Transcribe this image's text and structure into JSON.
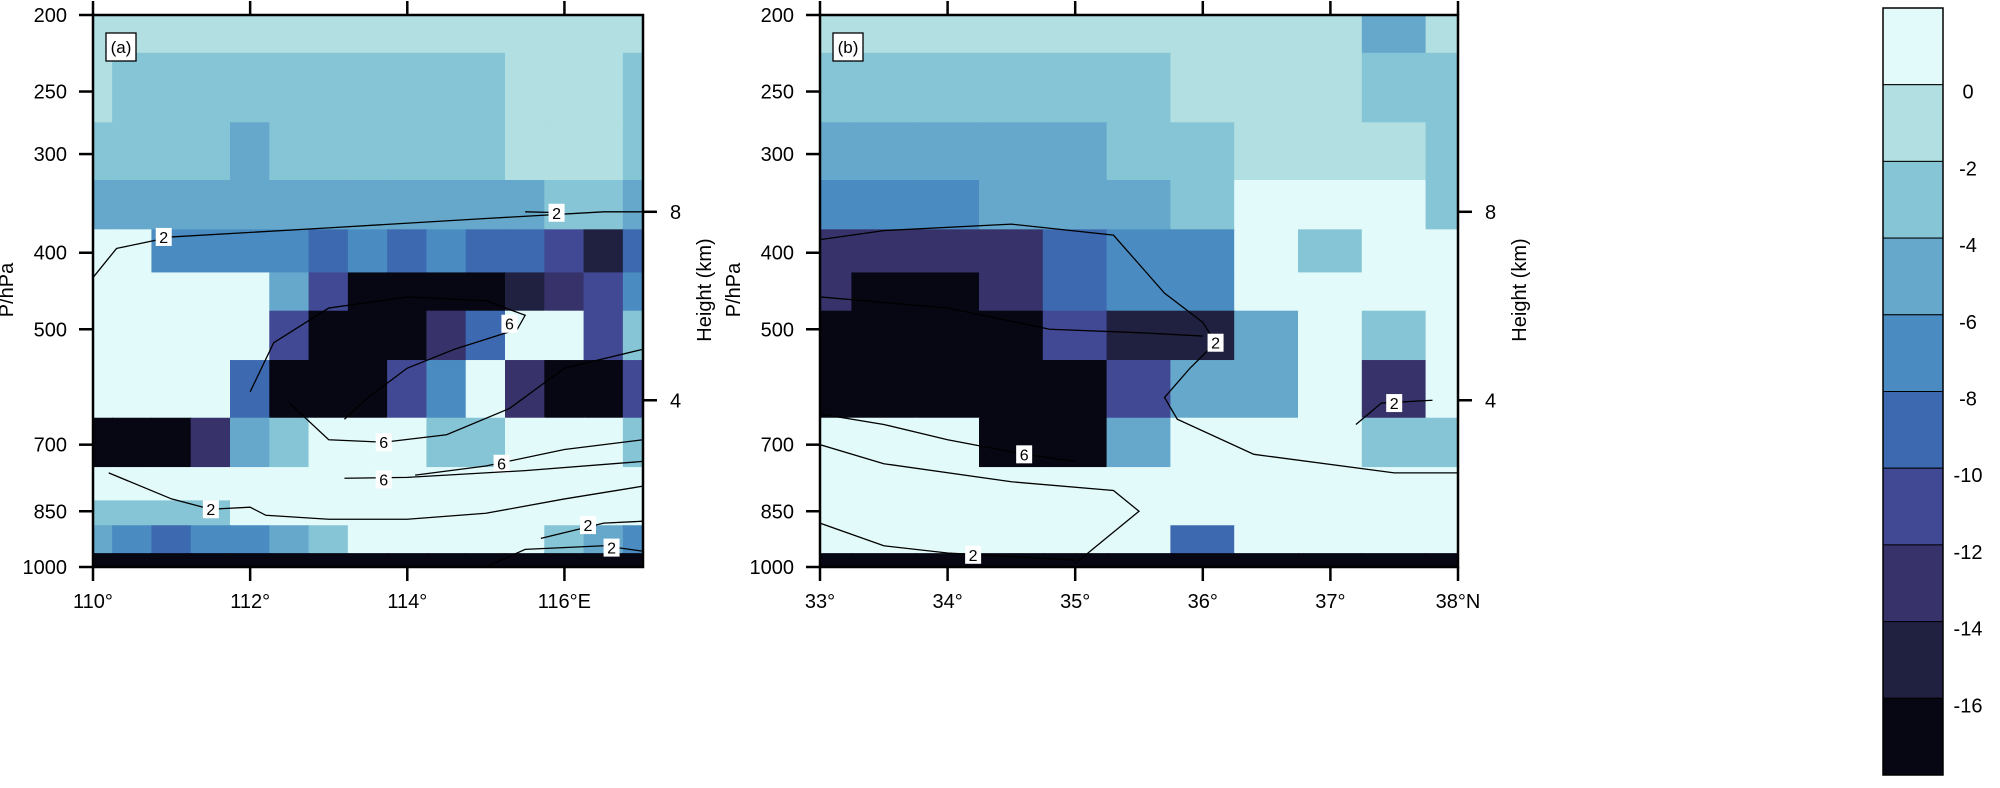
{
  "chart_data": {
    "type": "heatmap",
    "colorbar": {
      "levels": [
        0,
        -2,
        -4,
        -6,
        -8,
        -10,
        -12,
        -14,
        -16
      ],
      "tick_labels": [
        "0",
        "-2",
        "-4",
        "-6",
        "-8",
        "-10",
        "-12",
        "-14",
        "-16"
      ],
      "colors": [
        "#e3fafa",
        "#b1dfe2",
        "#86c5d5",
        "#65a8cb",
        "#4a8cc2",
        "#3d69b0",
        "#424994",
        "#37336a",
        "#202040",
        "#070714"
      ]
    },
    "panels": [
      {
        "label": "(a)",
        "ylabel": "P/hPa",
        "ylabel_right": "Height (km)",
        "y_scale": "log",
        "ylim": [
          1000,
          200
        ],
        "xlim": [
          110,
          117
        ],
        "x_ticks": [
          110,
          112,
          114,
          116
        ],
        "x_tick_labels": [
          "110°",
          "112°",
          "114°",
          "116°E"
        ],
        "y_ticks": [
          200,
          250,
          300,
          400,
          500,
          700,
          850,
          1000
        ],
        "y_tick_labels": [
          "200",
          "250",
          "300",
          "400",
          "500",
          "700",
          "850",
          "1000"
        ],
        "height_ticks": [
          {
            "p": 355,
            "label": "8"
          },
          {
            "p": 615,
            "label": "4"
          }
        ],
        "x": [
          110,
          110.5,
          111,
          111.5,
          112,
          112.5,
          113,
          113.5,
          114,
          114.5,
          115,
          115.5,
          116,
          116.5,
          117
        ],
        "p": [
          200,
          250,
          300,
          350,
          400,
          450,
          500,
          600,
          700,
          800,
          850,
          925,
          1000
        ],
        "values": [
          [
            -1,
            -1,
            -1,
            -1,
            -1,
            -1,
            -1,
            -1,
            -1,
            -1,
            -1,
            -1,
            -1,
            -1,
            -1
          ],
          [
            -1,
            -3,
            -3,
            -3,
            -3,
            -3,
            -3,
            -3,
            -3,
            -3,
            -3,
            -1,
            -1,
            -1,
            -3
          ],
          [
            -3,
            -3,
            -3,
            -3,
            -4,
            -3,
            -3,
            -3,
            -3,
            -3,
            -3,
            -1,
            -1,
            -1,
            -3
          ],
          [
            -4,
            -5,
            -5,
            -5,
            -4,
            -4,
            -4,
            -4,
            -4,
            -4,
            -4,
            -4,
            -3,
            -3,
            -5
          ],
          [
            1,
            1,
            -6,
            -7,
            -6,
            -7,
            -8,
            -7,
            -8,
            -7,
            -8,
            -9,
            -10,
            -14,
            -8
          ],
          [
            1,
            1,
            1,
            1,
            1,
            -5,
            -10,
            -16,
            -17,
            -17,
            -16,
            -15,
            -12,
            -10,
            -6
          ],
          [
            1,
            1,
            1,
            1,
            1,
            -10,
            -17,
            -17,
            -17,
            -12,
            -8,
            1,
            1,
            -10,
            -3
          ],
          [
            1,
            1,
            1,
            1,
            -8,
            -17,
            -17,
            -17,
            -10,
            -6,
            1,
            -12,
            -17,
            -17,
            -10
          ],
          [
            -17,
            -17,
            -17,
            -12,
            -4,
            -2,
            1,
            1,
            1,
            -2,
            -2,
            1,
            1,
            1,
            -2
          ],
          [
            1,
            1,
            1,
            1,
            1,
            1,
            1,
            1,
            1,
            1,
            1,
            1,
            1,
            1,
            1
          ],
          [
            -3,
            -2,
            -3,
            -3,
            1,
            1,
            1,
            1,
            1,
            1,
            1,
            1,
            1,
            1,
            1
          ],
          [
            -4,
            -6,
            -8,
            -6,
            -6,
            -4,
            -2,
            1,
            1,
            1,
            1,
            1,
            -3,
            -5,
            -6
          ],
          [
            -17,
            -17,
            -17,
            -17,
            -17,
            -17,
            -17,
            -17,
            -17,
            -17,
            -17,
            -17,
            -17,
            -17,
            -17
          ]
        ],
        "contours": [
          {
            "label": "2",
            "points": [
              [
                110,
                430
              ],
              [
                110.3,
                395
              ],
              [
                111,
                382
              ],
              [
                113,
                372
              ],
              [
                115,
                362
              ],
              [
                116.5,
                355
              ],
              [
                117,
                355
              ]
            ],
            "label_at": [
              110.9,
              382
            ]
          },
          {
            "label": "2",
            "points": [
              [
                115.5,
                355
              ],
              [
                116,
                356
              ]
            ],
            "label_at": [
              115.9,
              356
            ]
          },
          {
            "label": "6",
            "points": [
              [
                112,
                600
              ],
              [
                112.3,
                520
              ],
              [
                113,
                470
              ],
              [
                114,
                455
              ],
              [
                115,
                460
              ],
              [
                115.5,
                480
              ],
              [
                115.4,
                500
              ],
              [
                114.6,
                530
              ],
              [
                114,
                560
              ],
              [
                113.5,
                610
              ],
              [
                113.2,
                650
              ]
            ],
            "label_at": [
              115.3,
              492
            ]
          },
          {
            "label": "6",
            "points": [
              [
                112.5,
                620
              ],
              [
                113,
                690
              ],
              [
                113.7,
                695
              ],
              [
                114.5,
                680
              ],
              [
                115.3,
                630
              ],
              [
                116,
                560
              ],
              [
                117,
                530
              ]
            ],
            "label_at": [
              113.7,
              695
            ]
          },
          {
            "label": "6",
            "points": [
              [
                114.1,
                765
              ],
              [
                115,
                745
              ],
              [
                116,
                710
              ],
              [
                117,
                690
              ]
            ],
            "label_at": [
              115.2,
              740
            ]
          },
          {
            "label": "6",
            "points": [
              [
                113.2,
                772
              ],
              [
                114,
                770
              ],
              [
                115.5,
                755
              ],
              [
                117,
                735
              ]
            ],
            "label_at": [
              113.7,
              775
            ]
          },
          {
            "label": "2",
            "points": [
              [
                110.2,
                760
              ],
              [
                111,
                820
              ],
              [
                111.5,
                845
              ],
              [
                112,
                840
              ],
              [
                112.2,
                860
              ],
              [
                113,
                870
              ],
              [
                114,
                870
              ],
              [
                115,
                855
              ],
              [
                116,
                820
              ],
              [
                117,
                790
              ]
            ],
            "label_at": [
              111.5,
              845
            ]
          },
          {
            "label": "2",
            "points": [
              [
                115.7,
                920
              ],
              [
                116.5,
                880
              ],
              [
                117,
                875
              ]
            ],
            "label_at": [
              116.3,
              885
            ]
          },
          {
            "label": "2",
            "points": [
              [
                115,
                1000
              ],
              [
                115.5,
                950
              ],
              [
                116.5,
                940
              ],
              [
                117,
                955
              ]
            ],
            "label_at": [
              116.6,
              945
            ]
          }
        ]
      },
      {
        "label": "(b)",
        "ylabel": "P/hPa",
        "ylabel_right": "Height (km)",
        "y_scale": "log",
        "ylim": [
          1000,
          200
        ],
        "xlim": [
          33,
          38
        ],
        "x_ticks": [
          33,
          34,
          35,
          36,
          37,
          38
        ],
        "x_tick_labels": [
          "33°",
          "34°",
          "35°",
          "36°",
          "37°",
          "38°N"
        ],
        "y_ticks": [
          200,
          250,
          300,
          400,
          500,
          700,
          850,
          1000
        ],
        "y_tick_labels": [
          "200",
          "250",
          "300",
          "400",
          "500",
          "700",
          "850",
          "1000"
        ],
        "height_ticks": [
          {
            "p": 355,
            "label": "8"
          },
          {
            "p": 615,
            "label": "4"
          }
        ],
        "x": [
          33,
          33.5,
          34,
          34.5,
          35,
          35.5,
          36,
          36.5,
          37,
          37.5,
          38
        ],
        "p": [
          200,
          250,
          300,
          350,
          400,
          450,
          500,
          600,
          700,
          800,
          850,
          925,
          1000
        ],
        "values": [
          [
            -1,
            -1,
            -1,
            -1,
            -1,
            -1,
            -1,
            -1,
            -1,
            -5,
            -1
          ],
          [
            -3,
            -3,
            -3,
            -3,
            -3,
            -3,
            -1,
            -1,
            -1,
            -3,
            -3
          ],
          [
            -5,
            -5,
            -5,
            -5,
            -5,
            -3,
            -3,
            -1,
            -1,
            -1,
            -3
          ],
          [
            -7,
            -7,
            -7,
            -5,
            -5,
            -5,
            -3,
            1,
            1,
            1,
            -3
          ],
          [
            -12,
            -12,
            -12,
            -12,
            -9,
            -6,
            -6,
            1,
            -3,
            1,
            1
          ],
          [
            -12,
            -17,
            -17,
            -12,
            -8,
            -7,
            -7,
            1,
            1,
            1,
            1
          ],
          [
            -17,
            -17,
            -17,
            -17,
            -11,
            -14,
            -14,
            -4,
            1,
            -3,
            1
          ],
          [
            -17,
            -17,
            -17,
            -17,
            -17,
            -10,
            -5,
            -5,
            1,
            -13,
            1
          ],
          [
            1,
            1,
            1,
            -17,
            -17,
            -4,
            1,
            1,
            1,
            -3,
            -3
          ],
          [
            1,
            1,
            1,
            1,
            1,
            1,
            1,
            1,
            1,
            1,
            1
          ],
          [
            1,
            1,
            1,
            1,
            1,
            1,
            1,
            1,
            1,
            1,
            1
          ],
          [
            1,
            1,
            1,
            1,
            1,
            1,
            -8,
            1,
            1,
            1,
            1
          ],
          [
            -17,
            -17,
            -17,
            -17,
            -17,
            -17,
            -17,
            -17,
            -17,
            -17,
            -17
          ]
        ],
        "contours": [
          {
            "label": "2",
            "points": [
              [
                33,
                385
              ],
              [
                33.5,
                375
              ],
              [
                34.5,
                368
              ],
              [
                35.3,
                380
              ],
              [
                35.7,
                450
              ],
              [
                36,
                490
              ],
              [
                36.1,
                520
              ],
              [
                35.9,
                560
              ],
              [
                35.7,
                610
              ],
              [
                35.8,
                650
              ],
              [
                36.4,
                720
              ],
              [
                37.5,
                760
              ],
              [
                38,
                760
              ]
            ],
            "label_at": [
              36.1,
              520
            ]
          },
          {
            "label": "2",
            "points": [
              [
                37.2,
                660
              ],
              [
                37.4,
                620
              ],
              [
                37.8,
                615
              ]
            ],
            "label_at": [
              37.5,
              620
            ]
          },
          {
            "label": "6",
            "points": [
              [
                33,
                640
              ],
              [
                33.5,
                660
              ],
              [
                34,
                690
              ],
              [
                34.6,
                720
              ],
              [
                35,
                735
              ]
            ],
            "label_at": [
              34.6,
              720
            ]
          },
          {
            "label": "2",
            "points": [
              [
                33,
                880
              ],
              [
                33.5,
                940
              ],
              [
                34,
                960
              ],
              [
                34.5,
                970
              ],
              [
                35,
                980
              ]
            ],
            "label_at": [
              34.2,
              965
            ]
          },
          {
            "label": "",
            "points": [
              [
                33,
                455
              ],
              [
                34,
                470
              ],
              [
                34.8,
                500
              ],
              [
                35.5,
                505
              ],
              [
                36,
                510
              ]
            ],
            "label_at": null
          },
          {
            "label": "",
            "points": [
              [
                33,
                700
              ],
              [
                33.5,
                740
              ],
              [
                34.5,
                780
              ],
              [
                35.3,
                800
              ],
              [
                35.5,
                850
              ],
              [
                35,
                990
              ]
            ],
            "label_at": null
          }
        ]
      }
    ]
  }
}
